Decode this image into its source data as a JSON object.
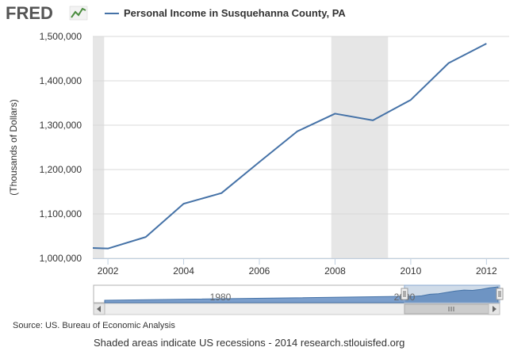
{
  "logo": {
    "text": "FRED"
  },
  "chart_data": {
    "type": "line",
    "title": "",
    "xlabel": "",
    "ylabel": "(Thousands of Dollars)",
    "series": [
      {
        "name": "Personal Income in Susquehanna County, PA",
        "color": "#4572a7",
        "x": [
          2001,
          2002,
          2003,
          2004,
          2005,
          2006,
          2007,
          2008,
          2009,
          2010,
          2011,
          2012
        ],
        "values": [
          1025000,
          1022000,
          1048000,
          1123000,
          1147000,
          1217000,
          1286000,
          1326000,
          1311000,
          1357000,
          1440000,
          1484000
        ]
      }
    ],
    "xlim": [
      2001.6,
      2012.6
    ],
    "ylim": [
      1000000,
      1500000
    ],
    "xticks": [
      "2002",
      "2004",
      "2006",
      "2008",
      "2010",
      "2012"
    ],
    "yticks": [
      "1,000,000",
      "1,100,000",
      "1,200,000",
      "1,300,000",
      "1,400,000",
      "1,500,000"
    ],
    "recessions": [
      [
        2001.2,
        2001.9
      ],
      [
        2007.9,
        2009.4
      ]
    ],
    "recession_color": "#e6e6e6",
    "grid": true,
    "legend_position": "top"
  },
  "navigator": {
    "labels": [
      "1980",
      "2000"
    ],
    "fill_color": "#7c9fcc"
  },
  "footer": {
    "source": "Source: US. Bureau of Economic Analysis",
    "note": "Shaded areas indicate US recessions - 2014 research.stlouisfed.org"
  }
}
